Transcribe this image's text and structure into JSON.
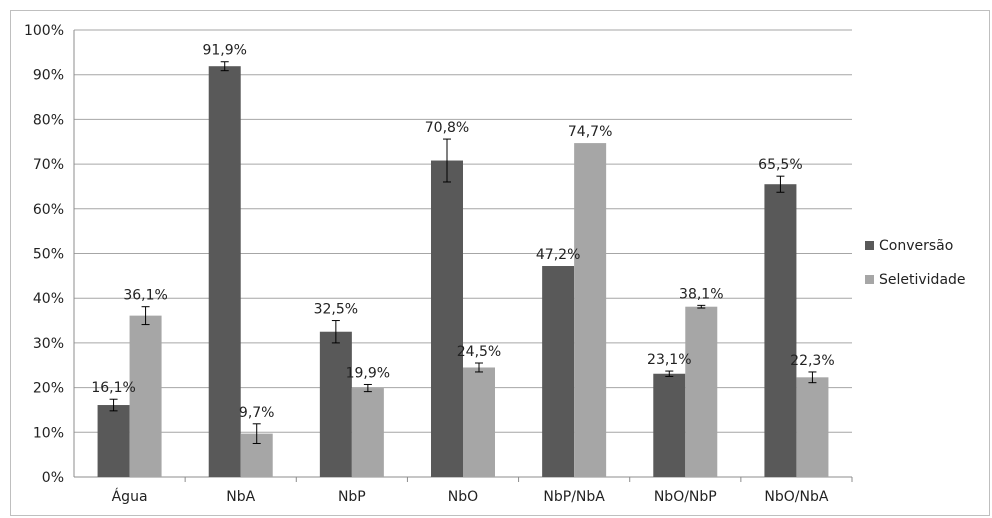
{
  "chart_data": {
    "type": "bar",
    "categories": [
      "Água",
      "NbA",
      "NbP",
      "NbO",
      "NbP/NbA",
      "NbO/NbP",
      "NbO/NbA"
    ],
    "series": [
      {
        "name": "Conversão",
        "color": "#595959",
        "values": [
          16.1,
          91.9,
          32.5,
          70.8,
          47.2,
          23.1,
          65.5
        ],
        "labels": [
          "16,1%",
          "91,9%",
          "32,5%",
          "70,8%",
          "47,2%",
          "23,1%",
          "65,5%"
        ],
        "errors": [
          1.3,
          1.0,
          2.5,
          4.8,
          0,
          0.6,
          1.8
        ]
      },
      {
        "name": "Seletividade",
        "color": "#a6a6a6",
        "values": [
          36.1,
          9.7,
          19.9,
          24.5,
          74.7,
          38.1,
          22.3
        ],
        "labels": [
          "36,1%",
          "9,7%",
          "19,9%",
          "24,5%",
          "74,7%",
          "38,1%",
          "22,3%"
        ],
        "errors": [
          2.0,
          2.2,
          0.8,
          1.0,
          0,
          0.3,
          1.2
        ]
      }
    ],
    "y_ticks": [
      "0%",
      "10%",
      "20%",
      "30%",
      "40%",
      "50%",
      "60%",
      "70%",
      "80%",
      "90%",
      "100%"
    ],
    "ylim": [
      0,
      100
    ],
    "grid": true,
    "legend_position": "right",
    "title": "",
    "xlabel": "",
    "ylabel": ""
  }
}
